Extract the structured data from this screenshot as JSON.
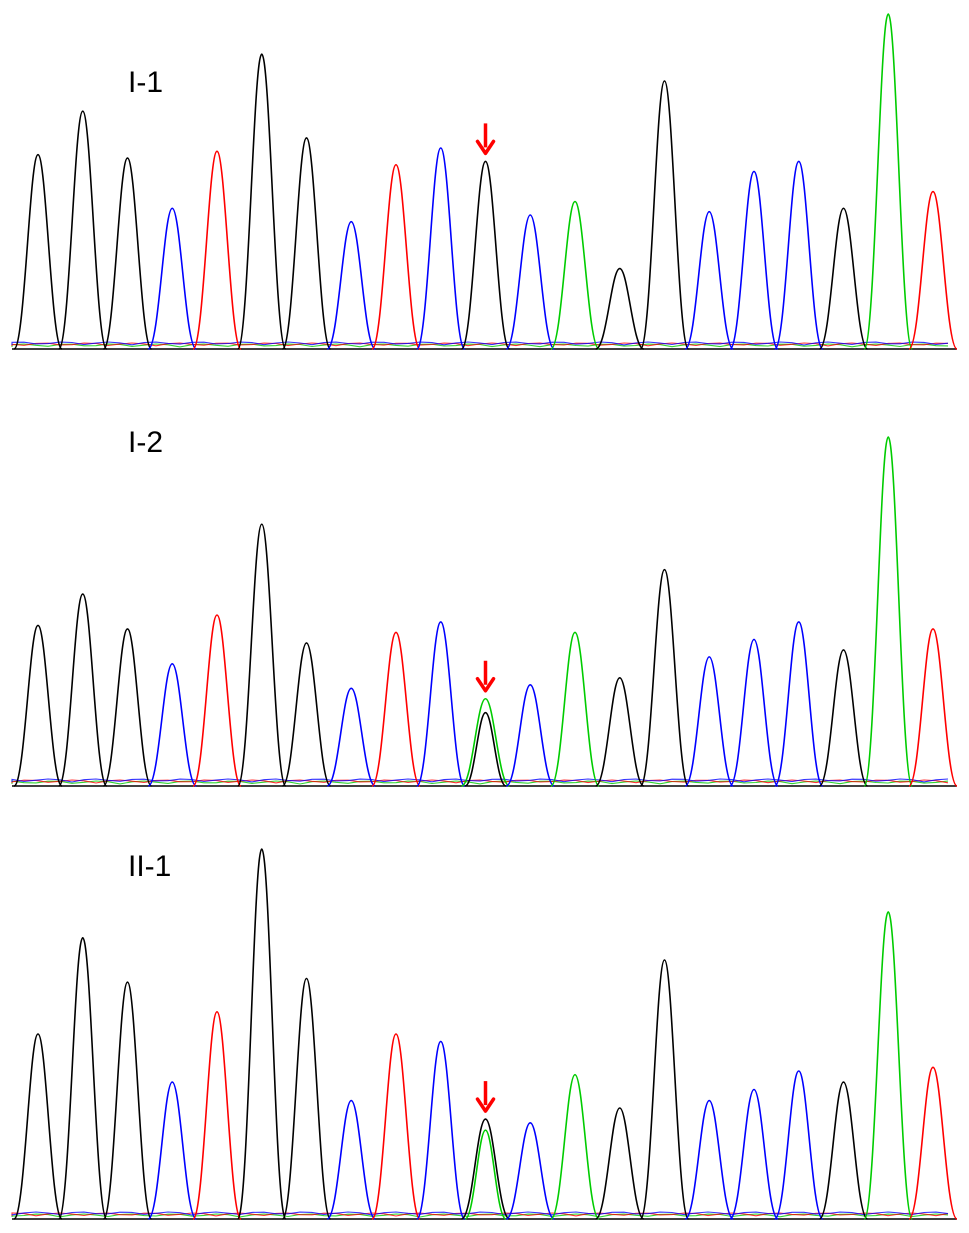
{
  "colors": {
    "base_A": "#00cc00",
    "base_C": "#0000ff",
    "base_G": "#000000",
    "base_T": "#ff0000",
    "baseline": "#000000",
    "arrow": "#ff0000"
  },
  "arrow_icon": "red-down-arrow",
  "chart_data": [
    {
      "type": "line",
      "title": "I-1",
      "peaks": [
        {
          "base": "G",
          "height": 0.58
        },
        {
          "base": "G",
          "height": 0.71
        },
        {
          "base": "G",
          "height": 0.57
        },
        {
          "base": "C",
          "height": 0.42
        },
        {
          "base": "T",
          "height": 0.59
        },
        {
          "base": "G",
          "height": 0.88
        },
        {
          "base": "G",
          "height": 0.63
        },
        {
          "base": "C",
          "height": 0.38
        },
        {
          "base": "T",
          "height": 0.55
        },
        {
          "base": "C",
          "height": 0.6
        },
        {
          "base": "G",
          "height": 0.56,
          "arrow": true
        },
        {
          "base": "C",
          "height": 0.4
        },
        {
          "base": "A",
          "height": 0.44
        },
        {
          "base": "G",
          "height": 0.24
        },
        {
          "base": "G",
          "height": 0.8
        },
        {
          "base": "C",
          "height": 0.41
        },
        {
          "base": "C",
          "height": 0.53
        },
        {
          "base": "C",
          "height": 0.56
        },
        {
          "base": "G",
          "height": 0.42
        },
        {
          "base": "A",
          "height": 1.0
        },
        {
          "base": "T",
          "height": 0.47
        }
      ]
    },
    {
      "type": "line",
      "title": "I-2",
      "peaks": [
        {
          "base": "G",
          "height": 0.46
        },
        {
          "base": "G",
          "height": 0.55
        },
        {
          "base": "G",
          "height": 0.45
        },
        {
          "base": "C",
          "height": 0.35
        },
        {
          "base": "T",
          "height": 0.49
        },
        {
          "base": "G",
          "height": 0.75
        },
        {
          "base": "G",
          "height": 0.41
        },
        {
          "base": "C",
          "height": 0.28
        },
        {
          "base": "T",
          "height": 0.44
        },
        {
          "base": "C",
          "height": 0.47
        },
        {
          "base": "A",
          "height": 0.25,
          "arrow": true,
          "secondary": {
            "base": "G",
            "height": 0.21
          }
        },
        {
          "base": "C",
          "height": 0.29
        },
        {
          "base": "A",
          "height": 0.44
        },
        {
          "base": "G",
          "height": 0.31
        },
        {
          "base": "G",
          "height": 0.62
        },
        {
          "base": "C",
          "height": 0.37
        },
        {
          "base": "C",
          "height": 0.42
        },
        {
          "base": "C",
          "height": 0.47
        },
        {
          "base": "G",
          "height": 0.39
        },
        {
          "base": "A",
          "height": 1.0
        },
        {
          "base": "T",
          "height": 0.45
        }
      ]
    },
    {
      "type": "line",
      "title": "II-1",
      "peaks": [
        {
          "base": "G",
          "height": 0.5
        },
        {
          "base": "G",
          "height": 0.76
        },
        {
          "base": "G",
          "height": 0.64
        },
        {
          "base": "C",
          "height": 0.37
        },
        {
          "base": "T",
          "height": 0.56
        },
        {
          "base": "G",
          "height": 1.0
        },
        {
          "base": "G",
          "height": 0.65
        },
        {
          "base": "C",
          "height": 0.32
        },
        {
          "base": "T",
          "height": 0.5
        },
        {
          "base": "C",
          "height": 0.48
        },
        {
          "base": "G",
          "height": 0.27,
          "arrow": true,
          "secondary": {
            "base": "A",
            "height": 0.24
          }
        },
        {
          "base": "C",
          "height": 0.26
        },
        {
          "base": "A",
          "height": 0.39
        },
        {
          "base": "G",
          "height": 0.3
        },
        {
          "base": "G",
          "height": 0.7
        },
        {
          "base": "C",
          "height": 0.32
        },
        {
          "base": "C",
          "height": 0.35
        },
        {
          "base": "C",
          "height": 0.4
        },
        {
          "base": "G",
          "height": 0.37
        },
        {
          "base": "A",
          "height": 0.83
        },
        {
          "base": "T",
          "height": 0.41
        }
      ]
    }
  ]
}
